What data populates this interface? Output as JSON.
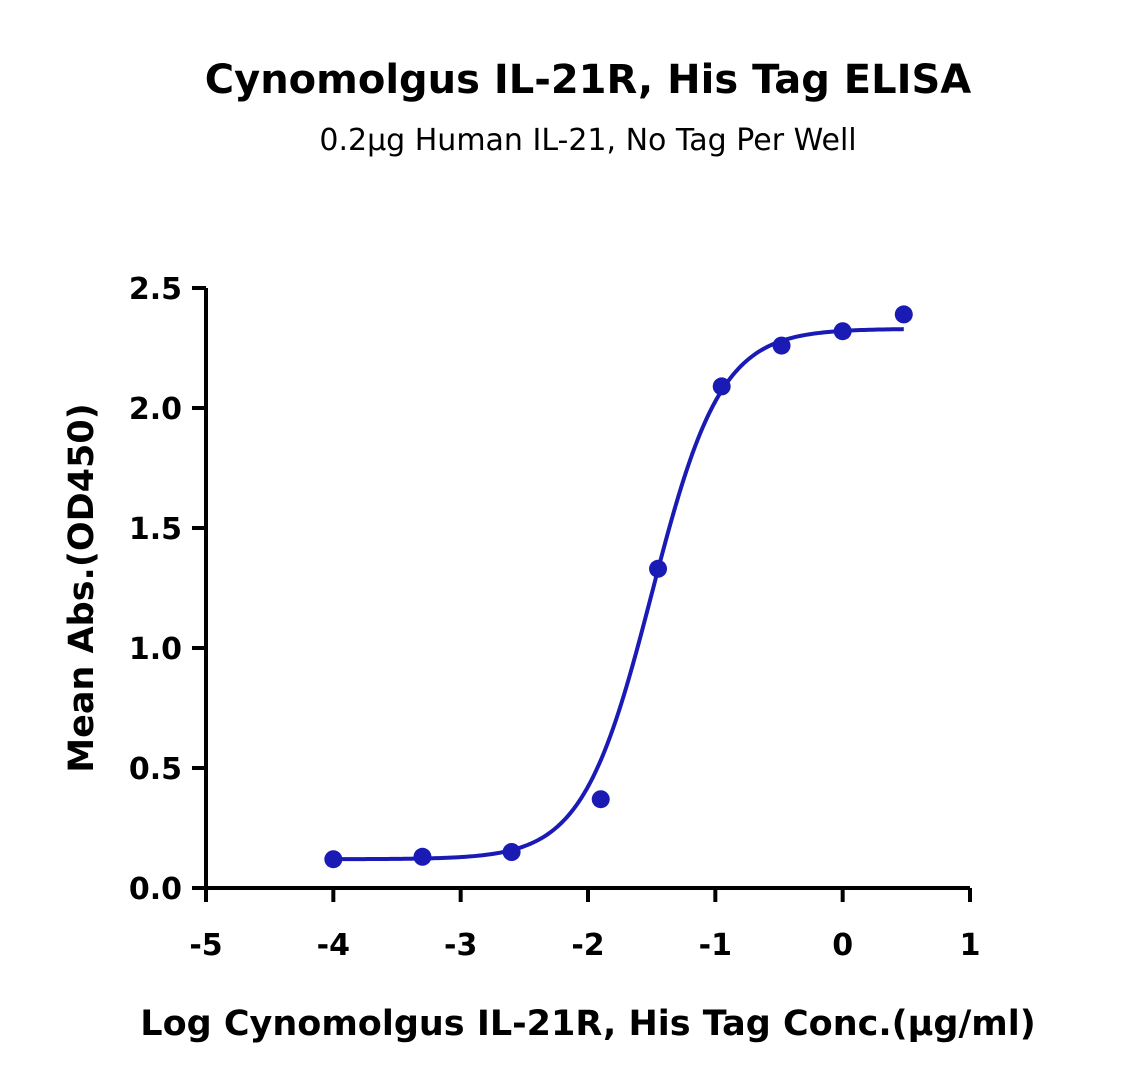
{
  "chart_data": {
    "type": "scatter",
    "title": "Cynomolgus IL-21R, His Tag ELISA",
    "subtitle": "0.2μg Human IL-21, No Tag Per Well",
    "xlabel": "Log Cynomolgus IL-21R, His Tag Conc.(μg/ml)",
    "ylabel": "Mean Abs.(OD450)",
    "xlim": [
      -5,
      1
    ],
    "ylim": [
      0,
      2.5
    ],
    "x_ticks": [
      -5,
      -4,
      -3,
      -2,
      -1,
      0,
      1
    ],
    "x_tick_labels": [
      "-5",
      "-4",
      "-3",
      "-2",
      "-1",
      "0",
      "1"
    ],
    "y_ticks": [
      0,
      0.5,
      1,
      1.5,
      2,
      2.5
    ],
    "y_tick_labels": [
      "0.0",
      "0.5",
      "1.0",
      "1.5",
      "2.0",
      "2.5"
    ],
    "grid": false,
    "series": [
      {
        "color": "#1a1ab4",
        "points": [
          {
            "x": -4.0,
            "y": 0.12
          },
          {
            "x": -3.3,
            "y": 0.13
          },
          {
            "x": -2.6,
            "y": 0.15
          },
          {
            "x": -1.9,
            "y": 0.37
          },
          {
            "x": -1.45,
            "y": 1.33
          },
          {
            "x": -0.95,
            "y": 2.09
          },
          {
            "x": -0.48,
            "y": 2.26
          },
          {
            "x": 0.0,
            "y": 2.32
          },
          {
            "x": 0.48,
            "y": 2.39
          }
        ],
        "fit": {
          "model": "4PL",
          "bottom": 0.12,
          "top": 2.33,
          "log_ec50": -1.5,
          "hill_slope": 1.6,
          "x_range": [
            -4.0,
            0.48
          ]
        }
      }
    ]
  }
}
